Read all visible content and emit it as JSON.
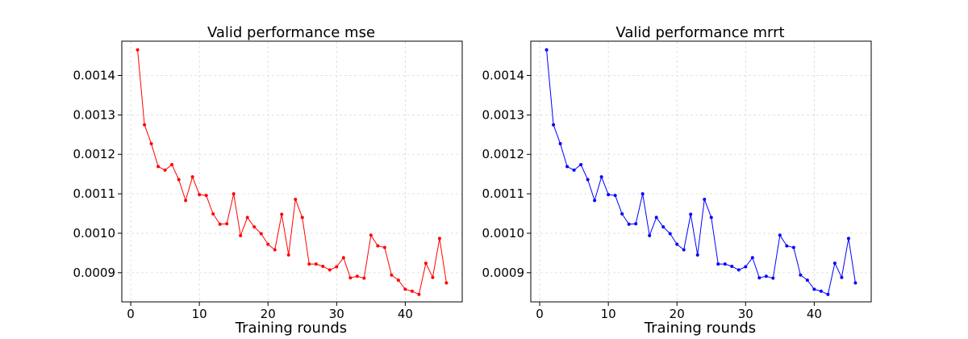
{
  "chart_data": [
    {
      "type": "line",
      "title": "Valid performance mse",
      "xlabel": "Training rounds",
      "ylabel": "",
      "xlim": [
        -1.3,
        48.3
      ],
      "ylim": [
        0.000826,
        0.001487
      ],
      "xticks": [
        0,
        10,
        20,
        30,
        40
      ],
      "yticks": [
        0.0009,
        0.001,
        0.0011,
        0.0012,
        0.0013,
        0.0014
      ],
      "ytick_labels": [
        "0.0009",
        "0.0010",
        "0.0011",
        "0.0012",
        "0.0013",
        "0.0014"
      ],
      "grid": true,
      "series": [
        {
          "color": "#ff0000",
          "marker": "dot",
          "x": [
            1,
            2,
            3,
            4,
            5,
            6,
            7,
            8,
            9,
            10,
            11,
            12,
            13,
            14,
            15,
            16,
            17,
            18,
            19,
            20,
            21,
            22,
            23,
            24,
            25,
            26,
            27,
            28,
            29,
            30,
            31,
            32,
            33,
            34,
            35,
            36,
            37,
            38,
            39,
            40,
            41,
            42,
            43,
            44,
            45,
            46
          ],
          "y": [
            0.001465,
            0.001275,
            0.001227,
            0.001169,
            0.00116,
            0.001174,
            0.001136,
            0.001083,
            0.001143,
            0.001098,
            0.001096,
            0.001049,
            0.001023,
            0.001024,
            0.0011,
            0.000994,
            0.00104,
            0.001016,
            0.000999,
            0.000972,
            0.000958,
            0.001048,
            0.000945,
            0.001086,
            0.00104,
            0.000922,
            0.000922,
            0.000916,
            0.000907,
            0.000915,
            0.000938,
            0.000887,
            0.000891,
            0.000886,
            0.000995,
            0.000968,
            0.000964,
            0.000894,
            0.000881,
            0.000858,
            0.000853,
            0.000845,
            0.000924,
            0.000888,
            0.000987,
            0.000874
          ]
        }
      ]
    },
    {
      "type": "line",
      "title": "Valid performance mrrt",
      "xlabel": "Training rounds",
      "ylabel": "",
      "xlim": [
        -1.3,
        48.3
      ],
      "ylim": [
        0.000826,
        0.001487
      ],
      "xticks": [
        0,
        10,
        20,
        30,
        40
      ],
      "yticks": [
        0.0009,
        0.001,
        0.0011,
        0.0012,
        0.0013,
        0.0014
      ],
      "ytick_labels": [
        "0.0009",
        "0.0010",
        "0.0011",
        "0.0012",
        "0.0013",
        "0.0014"
      ],
      "grid": true,
      "series": [
        {
          "color": "#0000ff",
          "marker": "dot",
          "x": [
            1,
            2,
            3,
            4,
            5,
            6,
            7,
            8,
            9,
            10,
            11,
            12,
            13,
            14,
            15,
            16,
            17,
            18,
            19,
            20,
            21,
            22,
            23,
            24,
            25,
            26,
            27,
            28,
            29,
            30,
            31,
            32,
            33,
            34,
            35,
            36,
            37,
            38,
            39,
            40,
            41,
            42,
            43,
            44,
            45,
            46
          ],
          "y": [
            0.001465,
            0.001275,
            0.001227,
            0.001169,
            0.00116,
            0.001174,
            0.001136,
            0.001083,
            0.001143,
            0.001098,
            0.001096,
            0.001049,
            0.001023,
            0.001024,
            0.0011,
            0.000994,
            0.00104,
            0.001016,
            0.000999,
            0.000972,
            0.000958,
            0.001048,
            0.000945,
            0.001086,
            0.00104,
            0.000922,
            0.000922,
            0.000916,
            0.000907,
            0.000915,
            0.000938,
            0.000887,
            0.000891,
            0.000886,
            0.000995,
            0.000968,
            0.000964,
            0.000894,
            0.000881,
            0.000858,
            0.000853,
            0.000845,
            0.000924,
            0.000888,
            0.000987,
            0.000874
          ]
        }
      ]
    }
  ]
}
